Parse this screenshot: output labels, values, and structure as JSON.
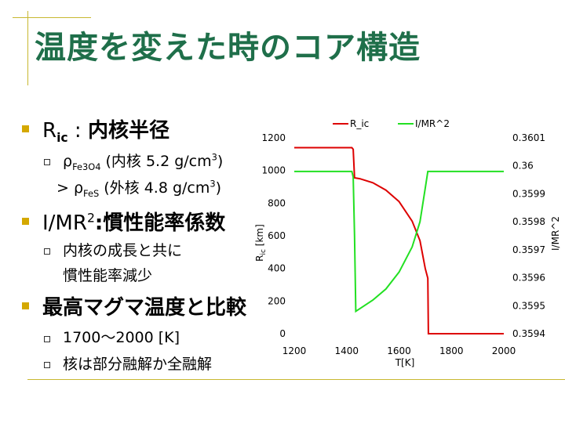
{
  "slide": {
    "title": "温度を変えた時のコア構造",
    "bullet1_main": "R",
    "bullet1_sub": "ic",
    "bullet1_colon": " : ",
    "bullet1_rest": "内核半径",
    "sub1_rho": "ρ",
    "sub1_subscript": "Fe3O4",
    "sub1_text": " (内核 5.2 g/cm",
    "sub1_sup": "3",
    "sub1_end": ")",
    "sub2_gt": "> ",
    "sub2_rho": "ρ",
    "sub2_subscript": "FeS",
    "sub2_text": " (外核 4.8 g/cm",
    "sub2_sup": "3",
    "sub2_end": ")",
    "bullet2_main": "I/MR",
    "bullet2_sup": "2",
    "bullet2_rest": ":慣性能率係数",
    "sub3_line1": "内核の成長と共に",
    "sub3_line2": "慣性能率減少",
    "bullet3": "最高マグマ温度と比較",
    "sub4": "1700～2000 [K]",
    "sub5": "核は部分融解か全融解"
  },
  "chart_data": {
    "type": "line",
    "legend": [
      "R_ic",
      "I/MR^2"
    ],
    "legend_position": "top",
    "xlabel": "T[K]",
    "ylabel_left_main": "R",
    "ylabel_left_sub": "ic",
    "ylabel_left_unit": " [km]",
    "ylabel_right": "I/MR^2",
    "xlim": [
      1200,
      2000
    ],
    "ylim_left": [
      0,
      1200
    ],
    "ylim_right": [
      0.3594,
      0.3601
    ],
    "x_ticks": [
      "1200",
      "1400",
      "1600",
      "1800",
      "2000"
    ],
    "y_left_ticks": [
      "0",
      "200",
      "400",
      "600",
      "800",
      "1000",
      "1200"
    ],
    "y_right_ticks": [
      "0.3594",
      "0.3595",
      "0.3596",
      "0.3597",
      "0.3598",
      "0.3599",
      "0.36",
      "0.3601"
    ],
    "colors": {
      "R_ic": "#dd0000",
      "I/MR^2": "#22e022"
    },
    "series": [
      {
        "name": "R_ic",
        "axis": "left",
        "x": [
          1200,
          1420,
          1425,
          1430,
          1450,
          1500,
          1550,
          1600,
          1650,
          1680,
          1700,
          1710,
          1712,
          1715,
          2000
        ],
        "y": [
          1140,
          1140,
          1130,
          955,
          950,
          925,
          880,
          810,
          690,
          570,
          400,
          340,
          0,
          0,
          0
        ]
      },
      {
        "name": "I/MR^2",
        "axis": "right",
        "x": [
          1200,
          1420,
          1425,
          1430,
          1435,
          1500,
          1550,
          1600,
          1650,
          1680,
          1700,
          1710,
          1715,
          2000
        ],
        "y": [
          0.35998,
          0.35998,
          0.35996,
          0.35975,
          0.35948,
          0.35952,
          0.35956,
          0.35962,
          0.35971,
          0.3598,
          0.35992,
          0.35998,
          0.35998,
          0.35998
        ]
      }
    ]
  }
}
